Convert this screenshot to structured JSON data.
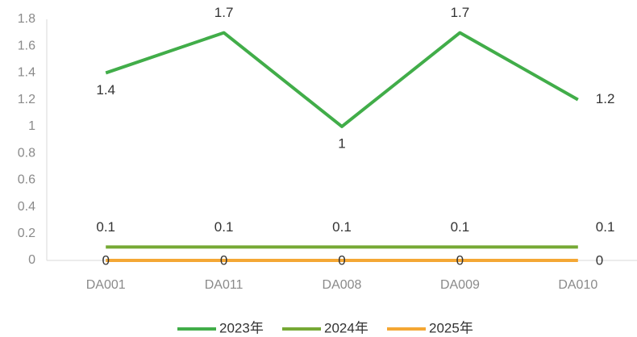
{
  "chart_data": {
    "type": "line",
    "categories": [
      "DA001",
      "DA011",
      "DA008",
      "DA009",
      "DA010"
    ],
    "series": [
      {
        "name": "2023年",
        "color": "#41ad49",
        "values": [
          1.4,
          1.7,
          1,
          1.7,
          1.2
        ]
      },
      {
        "name": "2024年",
        "color": "#76a935",
        "values": [
          0.1,
          0.1,
          0.1,
          0.1,
          0.1
        ]
      },
      {
        "name": "2025年",
        "color": "#f4a734",
        "values": [
          0,
          0,
          0,
          0,
          0
        ]
      }
    ],
    "ylim": [
      0,
      1.8
    ],
    "yticks": [
      0,
      0.2,
      0.4,
      0.6,
      0.8,
      1,
      1.2,
      1.4,
      1.6,
      1.8
    ],
    "grid": false,
    "legend": "bottom"
  }
}
